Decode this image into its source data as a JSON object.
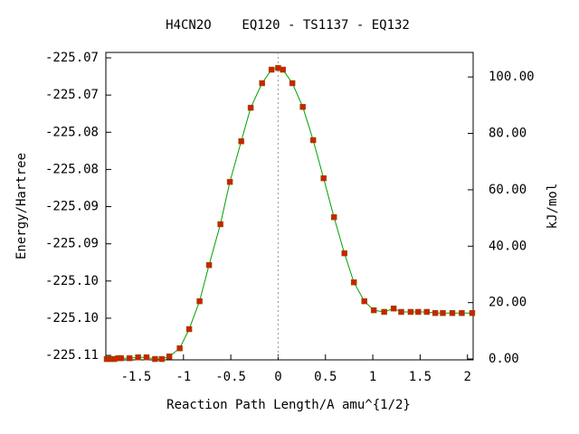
{
  "chart_data": {
    "type": "line",
    "title": "H4CN2O    EQ120 - TS1137 - EQ132",
    "x_label": "Reaction Path Length/A amu^{1/2}",
    "y_label": "Energy/Hartree",
    "y2_label": "kJ/mol",
    "xlim": [
      -1.82,
      2.06
    ],
    "ylim": [
      -225.1106,
      -225.06927
    ],
    "y2lim": [
      -0.3,
      108.7
    ],
    "xticks": [
      -1.5,
      -1,
      -0.5,
      0,
      0.5,
      1,
      1.5,
      2
    ],
    "yticks": [
      {
        "value": -225.11,
        "label": "-225.11"
      },
      {
        "value": -225.105,
        "label": "-225.10"
      },
      {
        "value": -225.1,
        "label": "-225.10"
      },
      {
        "value": -225.095,
        "label": "-225.09"
      },
      {
        "value": -225.09,
        "label": "-225.09"
      },
      {
        "value": -225.085,
        "label": "-225.08"
      },
      {
        "value": -225.08,
        "label": "-225.08"
      },
      {
        "value": -225.075,
        "label": "-225.07"
      },
      {
        "value": -225.07,
        "label": "-225.07"
      }
    ],
    "y2ticks": [
      {
        "value": 0,
        "label": "0.00"
      },
      {
        "value": 20,
        "label": "20.00"
      },
      {
        "value": 40,
        "label": "40.00"
      },
      {
        "value": 60,
        "label": "60.00"
      },
      {
        "value": 80,
        "label": "80.00"
      },
      {
        "value": 100,
        "label": "100.00"
      }
    ],
    "series": [
      {
        "axis": "y2",
        "color": "#00a000",
        "marker_color": "#cc2200",
        "x": [
          -1.81,
          -1.77,
          -1.73,
          -1.69,
          -1.66,
          -1.57,
          -1.48,
          -1.39,
          -1.3,
          -1.23,
          -1.15,
          -1.04,
          -0.94,
          -0.83,
          -0.73,
          -0.61,
          -0.51,
          -0.39,
          -0.29,
          -0.17,
          -0.07,
          0.0,
          0.05,
          0.15,
          0.26,
          0.37,
          0.48,
          0.59,
          0.7,
          0.8,
          0.91,
          1.01,
          1.12,
          1.22,
          1.3,
          1.4,
          1.48,
          1.57,
          1.66,
          1.74,
          1.84,
          1.94,
          2.05
        ],
        "values": [
          0.0,
          0.0,
          0.0,
          0.3,
          0.3,
          0.3,
          0.6,
          0.6,
          0.0,
          0.0,
          0.9,
          3.8,
          10.6,
          20.5,
          33.3,
          47.8,
          62.8,
          77.2,
          89.1,
          97.8,
          102.6,
          103.2,
          102.6,
          97.8,
          89.4,
          77.6,
          64.1,
          50.3,
          37.5,
          27.2,
          20.5,
          17.3,
          16.7,
          17.9,
          16.7,
          16.7,
          16.7,
          16.7,
          16.3,
          16.3,
          16.3,
          16.3,
          16.3
        ]
      }
    ]
  }
}
